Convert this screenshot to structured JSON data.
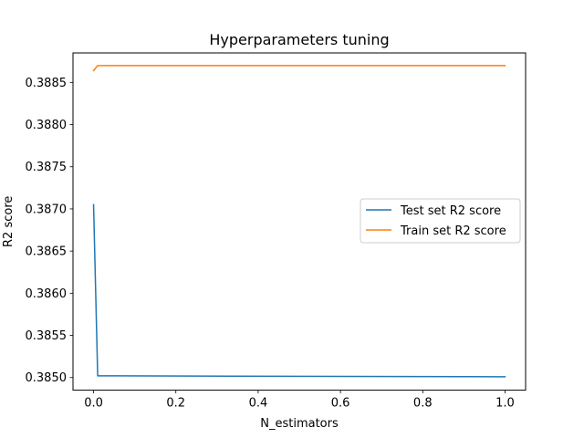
{
  "chart_data": {
    "type": "line",
    "title": "Hyperparameters tuning",
    "xlabel": "N_estimators",
    "ylabel": "R2 score",
    "xlim": [
      -0.05,
      1.05
    ],
    "ylim": [
      0.38485,
      0.38885
    ],
    "xticks": [
      0.0,
      0.2,
      0.4,
      0.6,
      0.8,
      1.0
    ],
    "xtick_labels": [
      "0.0",
      "0.2",
      "0.4",
      "0.6",
      "0.8",
      "1.0"
    ],
    "yticks": [
      0.385,
      0.3855,
      0.386,
      0.3865,
      0.387,
      0.3875,
      0.388,
      0.3885
    ],
    "ytick_labels": [
      "0.3850",
      "0.3855",
      "0.3860",
      "0.3865",
      "0.3870",
      "0.3875",
      "0.3880",
      "0.3885"
    ],
    "grid": false,
    "legend_position": "center-right",
    "series": [
      {
        "name": "Test set R2 score",
        "color": "#1f77b4",
        "x": [
          0.0,
          0.01,
          1.0
        ],
        "y": [
          0.38705,
          0.38502,
          0.38501
        ]
      },
      {
        "name": "Train set R2 score",
        "color": "#ff7f0e",
        "x": [
          0.0,
          0.01,
          1.0
        ],
        "y": [
          0.38864,
          0.3887,
          0.3887
        ]
      }
    ]
  }
}
